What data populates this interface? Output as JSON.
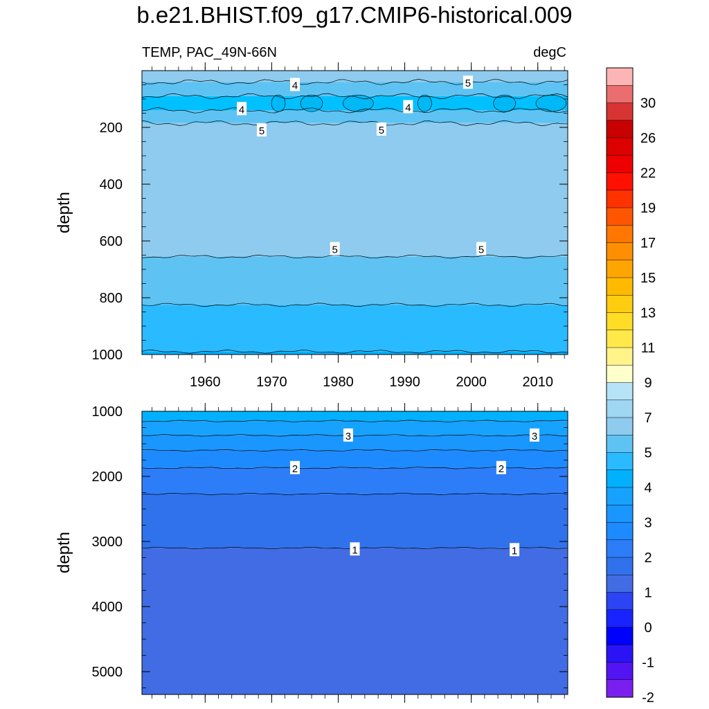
{
  "chart_data": {
    "type": "contour",
    "title": "b.e21.BHIST.f09_g17.CMIP6-historical.009",
    "variable_label": "TEMP, PAC_49N-66N",
    "units_label": "degC",
    "x": {
      "ticks": [
        1960,
        1970,
        1980,
        1990,
        2000,
        2010
      ],
      "tick_labels": [
        "1960",
        "1970",
        "1980",
        "1990",
        "2000",
        "2010"
      ],
      "range": [
        1950.5,
        2014.5
      ]
    },
    "panels": [
      {
        "name": "upper",
        "ylabel": "depth",
        "ylim": [
          0,
          1000
        ],
        "yticks": [
          200,
          400,
          600,
          800,
          1000
        ],
        "ytick_labels": [
          "200",
          "400",
          "600",
          "800",
          "1000"
        ],
        "show_x_labels": true,
        "bands": [
          {
            "top": 0,
            "bottom": 40,
            "color": "#8ecbee"
          },
          {
            "top": 40,
            "bottom": 90,
            "color": "#5ec3f3"
          },
          {
            "top": 90,
            "bottom": 140,
            "color": "#01c0ff"
          },
          {
            "top": 140,
            "bottom": 185,
            "color": "#5ec3f3"
          },
          {
            "top": 185,
            "bottom": 655,
            "color": "#8ecbee"
          },
          {
            "top": 655,
            "bottom": 825,
            "color": "#5ec3f3"
          },
          {
            "top": 825,
            "bottom": 990,
            "color": "#2abaff"
          },
          {
            "top": 990,
            "bottom": 1000,
            "color": "#01b0ff"
          }
        ],
        "contours": [
          40,
          90,
          140,
          185,
          655,
          825,
          990
        ],
        "labels": [
          {
            "text": "4",
            "year": 1973.5,
            "depth": 50
          },
          {
            "text": "5",
            "year": 1999.5,
            "depth": 42
          },
          {
            "text": "4",
            "year": 1965.5,
            "depth": 135
          },
          {
            "text": "4",
            "year": 1990.5,
            "depth": 128
          },
          {
            "text": "5",
            "year": 1968.5,
            "depth": 210
          },
          {
            "text": "5",
            "year": 1986.5,
            "depth": 207
          },
          {
            "text": "5",
            "year": 1979.5,
            "depth": 628
          },
          {
            "text": "5",
            "year": 2001.5,
            "depth": 628
          }
        ]
      },
      {
        "name": "lower",
        "ylabel": "depth",
        "ylim": [
          1000,
          5350
        ],
        "yticks": [
          1000,
          2000,
          3000,
          4000,
          5000
        ],
        "ytick_labels": [
          "1000",
          "2000",
          "3000",
          "4000",
          "5000"
        ],
        "show_x_labels": false,
        "bands": [
          {
            "top": 1000,
            "bottom": 1150,
            "color": "#01b0ff"
          },
          {
            "top": 1150,
            "bottom": 1370,
            "color": "#17a2ff"
          },
          {
            "top": 1370,
            "bottom": 1600,
            "color": "#1a96ff"
          },
          {
            "top": 1600,
            "bottom": 1870,
            "color": "#1e8aff"
          },
          {
            "top": 1870,
            "bottom": 2270,
            "color": "#2d7df8"
          },
          {
            "top": 2270,
            "bottom": 3100,
            "color": "#2f72ec"
          },
          {
            "top": 3100,
            "bottom": 5350,
            "color": "#416ce3"
          }
        ],
        "contours": [
          1150,
          1370,
          1600,
          1870,
          2270,
          3100
        ],
        "labels": [
          {
            "text": "3",
            "year": 1981.5,
            "depth": 1370
          },
          {
            "text": "3",
            "year": 2009.5,
            "depth": 1370
          },
          {
            "text": "2",
            "year": 1973.5,
            "depth": 1870
          },
          {
            "text": "2",
            "year": 2004.5,
            "depth": 1870
          },
          {
            "text": "1",
            "year": 1982.5,
            "depth": 3120
          },
          {
            "text": "1",
            "year": 2006.5,
            "depth": 3130
          }
        ]
      }
    ],
    "colorbar": {
      "colors": [
        "#fcb4b4",
        "#ea6e6e",
        "#d93434",
        "#c80000",
        "#dc0000",
        "#ef0000",
        "#ff1000",
        "#ff3200",
        "#ff5500",
        "#ff7700",
        "#ff8f00",
        "#ffa500",
        "#ffba00",
        "#ffcd10",
        "#ffdc26",
        "#ffe94a",
        "#fff389",
        "#ffffcc",
        "#b7e3f6",
        "#9fd6f1",
        "#8ecbee",
        "#5ec3f3",
        "#2abaff",
        "#01b0ff",
        "#17a2ff",
        "#1a96ff",
        "#1e8aff",
        "#2d7df8",
        "#2f72ec",
        "#416ce3",
        "#2b44f4",
        "#1923ff",
        "#0000ff",
        "#2a14f6",
        "#5314f3",
        "#7a1ff0"
      ],
      "tick_labels": [
        "30",
        "26",
        "22",
        "19",
        "17",
        "15",
        "13",
        "11",
        "9",
        "7",
        "5",
        "4",
        "3",
        "2",
        "1",
        "0",
        "-1",
        "-2"
      ]
    }
  }
}
